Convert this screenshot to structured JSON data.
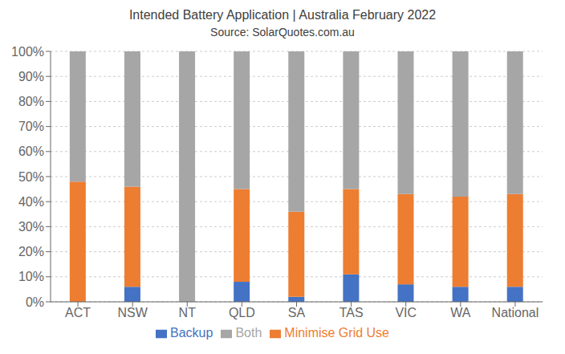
{
  "chart_data": {
    "type": "bar",
    "stacked": true,
    "title": "Intended Battery Application | Australia February 2022",
    "subtitle": "Source: SolarQuotes.com.au",
    "categories": [
      "ACT",
      "NSW",
      "NT",
      "QLD",
      "SA",
      "TAS",
      "VIC",
      "WA",
      "National"
    ],
    "series": [
      {
        "name": "Backup",
        "color": "#4472c4",
        "values": [
          0,
          6,
          0,
          8,
          2,
          11,
          7,
          6,
          6
        ]
      },
      {
        "name": "Minimise Grid Use",
        "color": "#ed7d31",
        "values": [
          48,
          40,
          0,
          37,
          34,
          34,
          36,
          36,
          37
        ]
      },
      {
        "name": "Both",
        "color": "#a6a6a6",
        "values": [
          52,
          54,
          100,
          55,
          64,
          55,
          57,
          58,
          57
        ]
      }
    ],
    "ylim": [
      0,
      100
    ],
    "yticks": [
      {
        "value": 0,
        "label": "0%"
      },
      {
        "value": 10,
        "label": "10%"
      },
      {
        "value": 20,
        "label": "20%"
      },
      {
        "value": 30,
        "label": "30%"
      },
      {
        "value": 40,
        "label": "40%"
      },
      {
        "value": 50,
        "label": "50%"
      },
      {
        "value": 60,
        "label": "60%"
      },
      {
        "value": 70,
        "label": "70%"
      },
      {
        "value": 80,
        "label": "80%"
      },
      {
        "value": 90,
        "label": "90%"
      },
      {
        "value": 100,
        "label": "100%"
      }
    ],
    "grid": true,
    "legend": "bottom"
  }
}
